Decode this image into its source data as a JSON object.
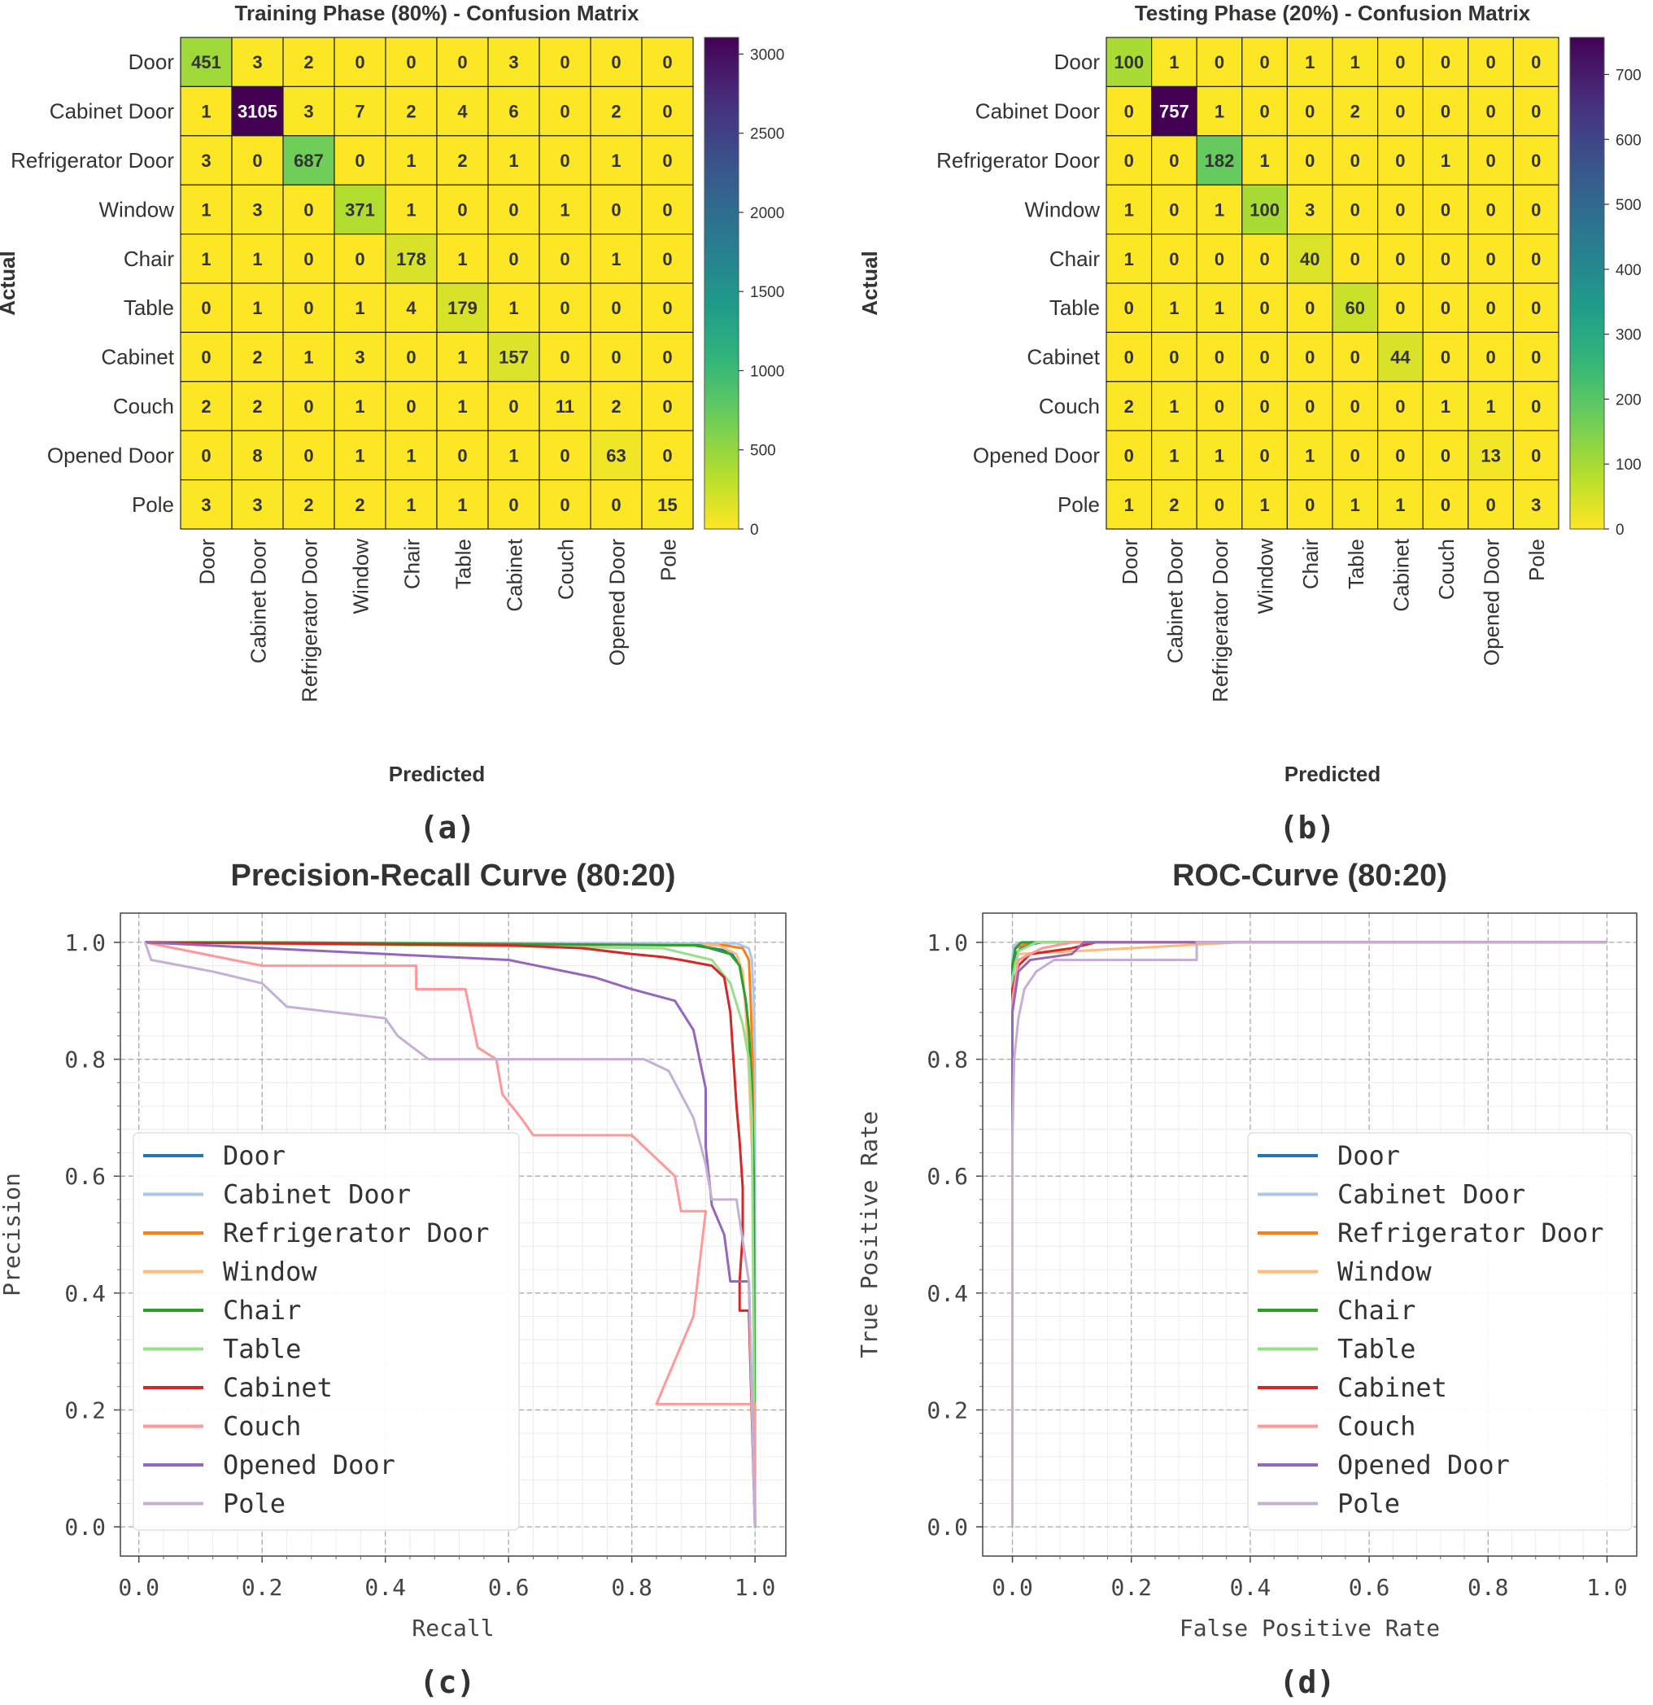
{
  "chart_data": [
    {
      "panel": "(a)",
      "type": "heatmap",
      "title": "Training Phase (80%) - Confusion Matrix",
      "xlabel": "Predicted",
      "ylabel": "Actual",
      "categories": [
        "Door",
        "Cabinet Door",
        "Refrigerator Door",
        "Window",
        "Chair",
        "Table",
        "Cabinet",
        "Couch",
        "Opened Door",
        "Pole"
      ],
      "matrix": [
        [
          451,
          3,
          2,
          0,
          0,
          0,
          3,
          0,
          0,
          0
        ],
        [
          1,
          3105,
          3,
          7,
          2,
          4,
          6,
          0,
          2,
          0
        ],
        [
          3,
          0,
          687,
          0,
          1,
          2,
          1,
          0,
          1,
          0
        ],
        [
          1,
          3,
          0,
          371,
          1,
          0,
          0,
          1,
          0,
          0
        ],
        [
          1,
          1,
          0,
          0,
          178,
          1,
          0,
          0,
          1,
          0
        ],
        [
          0,
          1,
          0,
          1,
          4,
          179,
          1,
          0,
          0,
          0
        ],
        [
          0,
          2,
          1,
          3,
          0,
          1,
          157,
          0,
          0,
          0
        ],
        [
          2,
          2,
          0,
          1,
          0,
          1,
          0,
          11,
          2,
          0
        ],
        [
          0,
          8,
          0,
          1,
          1,
          0,
          1,
          0,
          63,
          0
        ],
        [
          3,
          3,
          2,
          2,
          1,
          1,
          0,
          0,
          0,
          15
        ]
      ],
      "colorbar": {
        "min": 0,
        "max": 3105,
        "ticks": [
          0,
          500,
          1000,
          1500,
          2000,
          2500,
          3000
        ],
        "colormap": "viridis"
      }
    },
    {
      "panel": "(b)",
      "type": "heatmap",
      "title": "Testing Phase (20%) - Confusion Matrix",
      "xlabel": "Predicted",
      "ylabel": "Actual",
      "categories": [
        "Door",
        "Cabinet Door",
        "Refrigerator Door",
        "Window",
        "Chair",
        "Table",
        "Cabinet",
        "Couch",
        "Opened Door",
        "Pole"
      ],
      "matrix": [
        [
          100,
          1,
          0,
          0,
          1,
          1,
          0,
          0,
          0,
          0
        ],
        [
          0,
          757,
          1,
          0,
          0,
          2,
          0,
          0,
          0,
          0
        ],
        [
          0,
          0,
          182,
          1,
          0,
          0,
          0,
          1,
          0,
          0
        ],
        [
          1,
          0,
          1,
          100,
          3,
          0,
          0,
          0,
          0,
          0
        ],
        [
          1,
          0,
          0,
          0,
          40,
          0,
          0,
          0,
          0,
          0
        ],
        [
          0,
          1,
          1,
          0,
          0,
          60,
          0,
          0,
          0,
          0
        ],
        [
          0,
          0,
          0,
          0,
          0,
          0,
          44,
          0,
          0,
          0
        ],
        [
          2,
          1,
          0,
          0,
          0,
          0,
          0,
          1,
          1,
          0
        ],
        [
          0,
          1,
          1,
          0,
          1,
          0,
          0,
          0,
          13,
          0
        ],
        [
          1,
          2,
          0,
          1,
          0,
          1,
          1,
          0,
          0,
          3
        ]
      ],
      "colorbar": {
        "min": 0,
        "max": 757,
        "ticks": [
          0,
          100,
          200,
          300,
          400,
          500,
          600,
          700
        ],
        "colormap": "viridis"
      }
    },
    {
      "panel": "(c)",
      "type": "line",
      "title": "Precision-Recall Curve (80:20)",
      "xlabel": "Recall",
      "ylabel": "Precision",
      "xlim": [
        -0.03,
        1.05
      ],
      "ylim": [
        -0.05,
        1.05
      ],
      "xticks": [
        "0.0",
        "0.2",
        "0.4",
        "0.6",
        "0.8",
        "1.0"
      ],
      "yticks": [
        "0.0",
        "0.2",
        "0.4",
        "0.6",
        "0.8",
        "1.0"
      ],
      "legend_position": "center-left",
      "series": [
        {
          "name": "Door",
          "color": "#1f77b4",
          "points": [
            [
              0.01,
              1.0
            ],
            [
              0.9,
              0.995
            ],
            [
              0.96,
              0.985
            ],
            [
              0.975,
              0.96
            ],
            [
              0.985,
              0.9
            ],
            [
              0.99,
              0.85
            ],
            [
              0.995,
              0.7
            ],
            [
              0.998,
              0.5
            ],
            [
              1.0,
              0.0
            ]
          ]
        },
        {
          "name": "Cabinet Door",
          "color": "#aec7e8",
          "points": [
            [
              0.01,
              1.0
            ],
            [
              0.97,
              0.998
            ],
            [
              0.99,
              0.99
            ],
            [
              0.995,
              0.97
            ],
            [
              0.998,
              0.9
            ],
            [
              1.0,
              0.8
            ],
            [
              1.0,
              0.0
            ]
          ]
        },
        {
          "name": "Refrigerator Door",
          "color": "#ff7f0e",
          "points": [
            [
              0.01,
              1.0
            ],
            [
              0.95,
              0.995
            ],
            [
              0.98,
              0.99
            ],
            [
              0.99,
              0.97
            ],
            [
              0.993,
              0.9
            ],
            [
              0.996,
              0.8
            ],
            [
              1.0,
              0.0
            ]
          ]
        },
        {
          "name": "Window",
          "color": "#ffbb78",
          "points": [
            [
              0.01,
              1.0
            ],
            [
              0.94,
              0.995
            ],
            [
              0.97,
              0.98
            ],
            [
              0.98,
              0.95
            ],
            [
              0.985,
              0.88
            ],
            [
              0.99,
              0.78
            ],
            [
              0.993,
              0.7
            ],
            [
              0.996,
              0.62
            ],
            [
              1.0,
              0.0
            ]
          ]
        },
        {
          "name": "Chair",
          "color": "#2ca02c",
          "points": [
            [
              0.01,
              1.0
            ],
            [
              0.2,
              1.0
            ],
            [
              0.91,
              0.995
            ],
            [
              0.96,
              0.98
            ],
            [
              0.975,
              0.96
            ],
            [
              0.985,
              0.9
            ],
            [
              0.99,
              0.85
            ],
            [
              0.995,
              0.75
            ],
            [
              0.998,
              0.6
            ],
            [
              1.0,
              0.0
            ]
          ]
        },
        {
          "name": "Table",
          "color": "#98df8a",
          "points": [
            [
              0.01,
              1.0
            ],
            [
              0.2,
              0.998
            ],
            [
              0.85,
              0.99
            ],
            [
              0.93,
              0.97
            ],
            [
              0.96,
              0.93
            ],
            [
              0.98,
              0.86
            ],
            [
              0.99,
              0.8
            ],
            [
              0.995,
              0.7
            ],
            [
              1.0,
              0.0
            ]
          ]
        },
        {
          "name": "Cabinet",
          "color": "#d62728",
          "points": [
            [
              0.01,
              1.0
            ],
            [
              0.6,
              0.995
            ],
            [
              0.72,
              0.99
            ],
            [
              0.8,
              0.98
            ],
            [
              0.85,
              0.975
            ],
            [
              0.88,
              0.97
            ],
            [
              0.93,
              0.96
            ],
            [
              0.95,
              0.94
            ],
            [
              0.96,
              0.88
            ],
            [
              0.965,
              0.8
            ],
            [
              0.97,
              0.72
            ],
            [
              0.975,
              0.66
            ],
            [
              0.98,
              0.58
            ],
            [
              0.98,
              0.5
            ],
            [
              0.975,
              0.42
            ],
            [
              0.975,
              0.37
            ],
            [
              0.99,
              0.37
            ],
            [
              1.0,
              0.0
            ]
          ]
        },
        {
          "name": "Couch",
          "color": "#ff9896",
          "points": [
            [
              0.01,
              1.0
            ],
            [
              0.2,
              0.96
            ],
            [
              0.45,
              0.96
            ],
            [
              0.45,
              0.92
            ],
            [
              0.53,
              0.92
            ],
            [
              0.55,
              0.82
            ],
            [
              0.58,
              0.8
            ],
            [
              0.59,
              0.74
            ],
            [
              0.62,
              0.7
            ],
            [
              0.64,
              0.67
            ],
            [
              0.8,
              0.67
            ],
            [
              0.87,
              0.6
            ],
            [
              0.88,
              0.54
            ],
            [
              0.92,
              0.54
            ],
            [
              0.9,
              0.36
            ],
            [
              0.84,
              0.21
            ],
            [
              1.0,
              0.21
            ],
            [
              1.0,
              0.0
            ]
          ]
        },
        {
          "name": "Opened Door",
          "color": "#9467bd",
          "points": [
            [
              0.01,
              1.0
            ],
            [
              0.4,
              0.98
            ],
            [
              0.6,
              0.97
            ],
            [
              0.74,
              0.94
            ],
            [
              0.8,
              0.92
            ],
            [
              0.87,
              0.9
            ],
            [
              0.9,
              0.85
            ],
            [
              0.92,
              0.75
            ],
            [
              0.92,
              0.65
            ],
            [
              0.93,
              0.55
            ],
            [
              0.95,
              0.5
            ],
            [
              0.96,
              0.42
            ],
            [
              0.99,
              0.42
            ],
            [
              1.0,
              0.0
            ]
          ]
        },
        {
          "name": "Pole",
          "color": "#c5b0d5",
          "points": [
            [
              0.01,
              1.0
            ],
            [
              0.02,
              0.97
            ],
            [
              0.12,
              0.95
            ],
            [
              0.2,
              0.93
            ],
            [
              0.24,
              0.89
            ],
            [
              0.4,
              0.87
            ],
            [
              0.42,
              0.84
            ],
            [
              0.47,
              0.8
            ],
            [
              0.82,
              0.8
            ],
            [
              0.86,
              0.78
            ],
            [
              0.9,
              0.7
            ],
            [
              0.92,
              0.62
            ],
            [
              0.93,
              0.56
            ],
            [
              0.97,
              0.56
            ],
            [
              0.99,
              0.42
            ],
            [
              1.0,
              0.0
            ]
          ]
        }
      ]
    },
    {
      "panel": "(d)",
      "type": "line",
      "title": "ROC-Curve (80:20)",
      "xlabel": "False Positive Rate",
      "ylabel": "True Positive Rate",
      "xlim": [
        -0.05,
        1.05
      ],
      "ylim": [
        -0.05,
        1.05
      ],
      "xticks": [
        "0.0",
        "0.2",
        "0.4",
        "0.6",
        "0.8",
        "1.0"
      ],
      "yticks": [
        "0.0",
        "0.2",
        "0.4",
        "0.6",
        "0.8",
        "1.0"
      ],
      "legend_position": "lower-right",
      "series": [
        {
          "name": "Door",
          "color": "#1f77b4",
          "points": [
            [
              0,
              0
            ],
            [
              0,
              0.93
            ],
            [
              0.005,
              0.98
            ],
            [
              0.02,
              0.995
            ],
            [
              0.05,
              1.0
            ],
            [
              1.0,
              1.0
            ]
          ]
        },
        {
          "name": "Cabinet Door",
          "color": "#aec7e8",
          "points": [
            [
              0,
              0
            ],
            [
              0,
              0.97
            ],
            [
              0.002,
              0.995
            ],
            [
              0.02,
              1.0
            ],
            [
              1.0,
              1.0
            ]
          ]
        },
        {
          "name": "Refrigerator Door",
          "color": "#ff7f0e",
          "points": [
            [
              0,
              0
            ],
            [
              0,
              0.96
            ],
            [
              0.005,
              0.99
            ],
            [
              0.03,
              1.0
            ],
            [
              1.0,
              1.0
            ]
          ]
        },
        {
          "name": "Window",
          "color": "#ffbb78",
          "points": [
            [
              0,
              0
            ],
            [
              0,
              0.95
            ],
            [
              0.01,
              0.98
            ],
            [
              0.2,
              0.99
            ],
            [
              0.38,
              1.0
            ],
            [
              1.0,
              1.0
            ]
          ]
        },
        {
          "name": "Chair",
          "color": "#2ca02c",
          "points": [
            [
              0,
              0
            ],
            [
              0,
              0.96
            ],
            [
              0.005,
              0.99
            ],
            [
              0.015,
              1.0
            ],
            [
              1.0,
              1.0
            ]
          ]
        },
        {
          "name": "Table",
          "color": "#98df8a",
          "points": [
            [
              0,
              0
            ],
            [
              0,
              0.94
            ],
            [
              0.01,
              0.985
            ],
            [
              0.04,
              1.0
            ],
            [
              1.0,
              1.0
            ]
          ]
        },
        {
          "name": "Cabinet",
          "color": "#d62728",
          "points": [
            [
              0,
              0
            ],
            [
              0,
              0.92
            ],
            [
              0.01,
              0.96
            ],
            [
              0.03,
              0.98
            ],
            [
              0.1,
              0.99
            ],
            [
              0.14,
              1.0
            ],
            [
              1.0,
              1.0
            ]
          ]
        },
        {
          "name": "Couch",
          "color": "#ff9896",
          "points": [
            [
              0,
              0
            ],
            [
              0,
              0.9
            ],
            [
              0.01,
              0.97
            ],
            [
              0.05,
              0.99
            ],
            [
              0.1,
              1.0
            ],
            [
              1.0,
              1.0
            ]
          ]
        },
        {
          "name": "Opened Door",
          "color": "#9467bd",
          "points": [
            [
              0,
              0
            ],
            [
              0,
              0.88
            ],
            [
              0.01,
              0.95
            ],
            [
              0.03,
              0.97
            ],
            [
              0.1,
              0.98
            ],
            [
              0.12,
              1.0
            ],
            [
              1.0,
              1.0
            ]
          ]
        },
        {
          "name": "Pole",
          "color": "#c5b0d5",
          "points": [
            [
              0,
              0
            ],
            [
              0,
              0.66
            ],
            [
              0.003,
              0.8
            ],
            [
              0.01,
              0.87
            ],
            [
              0.02,
              0.92
            ],
            [
              0.04,
              0.95
            ],
            [
              0.07,
              0.97
            ],
            [
              0.31,
              0.97
            ],
            [
              0.31,
              1.0
            ],
            [
              1.0,
              1.0
            ]
          ]
        }
      ]
    }
  ],
  "captions": [
    "(a)",
    "(b)",
    "(c)",
    "(d)"
  ]
}
